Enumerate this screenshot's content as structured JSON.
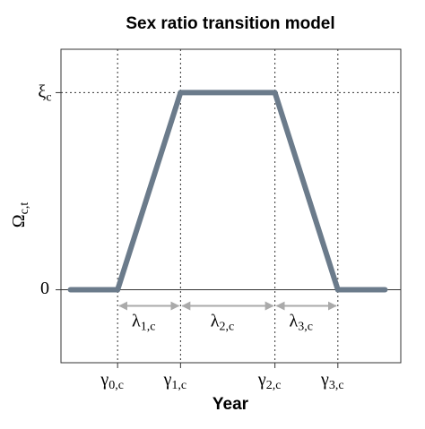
{
  "chart_data": {
    "type": "line",
    "title": "Sex ratio transition model",
    "x_label": "Year",
    "y_label": "Ωc,t",
    "x": [
      -1.5,
      0,
      2,
      5,
      7,
      8.5
    ],
    "values": [
      0,
      0,
      1,
      1,
      0,
      0
    ],
    "color": "#6b7b8b",
    "xlim": [
      -1.8,
      9
    ],
    "ylim": [
      -0.37,
      1.22
    ],
    "xticks": [
      {
        "value": 0,
        "label": "γ0,c"
      },
      {
        "value": 2,
        "label": "γ1,c"
      },
      {
        "value": 5,
        "label": "γ2,c"
      },
      {
        "value": 7,
        "label": "γ3,c"
      }
    ],
    "yticks": [
      0,
      {
        "value": 1,
        "label": "ξc"
      }
    ],
    "interval_labels": [
      "λ1,c",
      "λ2,c",
      "λ3,c"
    ],
    "grid": true
  }
}
